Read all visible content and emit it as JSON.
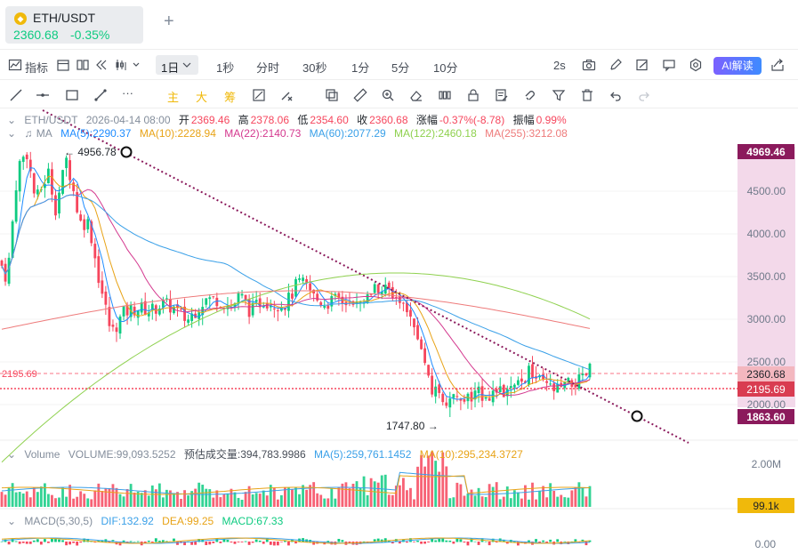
{
  "tab": {
    "pair": "ETH/USDT",
    "price": "2360.68",
    "change": "-0.35%"
  },
  "toolbar": {
    "indicators_label": "指标",
    "active_interval": "1日",
    "intervals": [
      "1秒",
      "分时",
      "30秒",
      "1分",
      "5分",
      "10分"
    ],
    "refresh": "2s",
    "ai_label": "AI解读"
  },
  "drawing": {
    "main_label": "主",
    "big_label": "大",
    "raise_label": "筹"
  },
  "ohlc": {
    "symbol": "ETH/USDT",
    "date": "2026-04-14 08:00",
    "open_label": "开",
    "open": "2369.46",
    "high_label": "高",
    "high": "2378.06",
    "low_label": "低",
    "low": "2354.60",
    "close_label": "收",
    "close": "2360.68",
    "change_label": "涨幅",
    "change": "-0.37%(-8.78)",
    "amp_label": "振幅",
    "amp": "0.99%"
  },
  "ma_legend": {
    "name": "MA",
    "items": [
      {
        "text": "MA(5):2290.37",
        "color": "#1e8cff"
      },
      {
        "text": "MA(10):2228.94",
        "color": "#e8a317"
      },
      {
        "text": "MA(22):2140.73",
        "color": "#d4398f"
      },
      {
        "text": "MA(60):2077.29",
        "color": "#3aa0e8"
      },
      {
        "text": "MA(122):2460.18",
        "color": "#8fd14f"
      },
      {
        "text": "MA(255):3212.08",
        "color": "#ee7b7b"
      }
    ]
  },
  "price_axis": {
    "ticks": [
      "4500.00",
      "4000.00",
      "3500.00",
      "3000.00",
      "2500.00",
      "2000.00"
    ],
    "tags": {
      "high": "4969.46",
      "last": "2360.68",
      "line": "2195.69",
      "low": "1863.60"
    },
    "left_line_label": "2195.69"
  },
  "markers": {
    "max": "4956.78",
    "min": "1747.80"
  },
  "volume": {
    "label": "Volume",
    "value": "VOLUME:99,093.5252",
    "est": "预估成交量:394,783.9986",
    "ma5": "MA(5):259,761.1452",
    "ma10": "MA(10):295,234.3727",
    "axis_top": "2.00M",
    "tag": "99.1k"
  },
  "macd": {
    "label": "MACD(5,30,5)",
    "dif": "DIF:132.92",
    "dea": "DEA:99.25",
    "macd": "MACD:67.33",
    "axis": "0.00"
  },
  "colors": {
    "up": "#0ecb81",
    "down": "#f6465d",
    "accent": "#f0b90b",
    "trend": "#8b1a5c"
  }
}
